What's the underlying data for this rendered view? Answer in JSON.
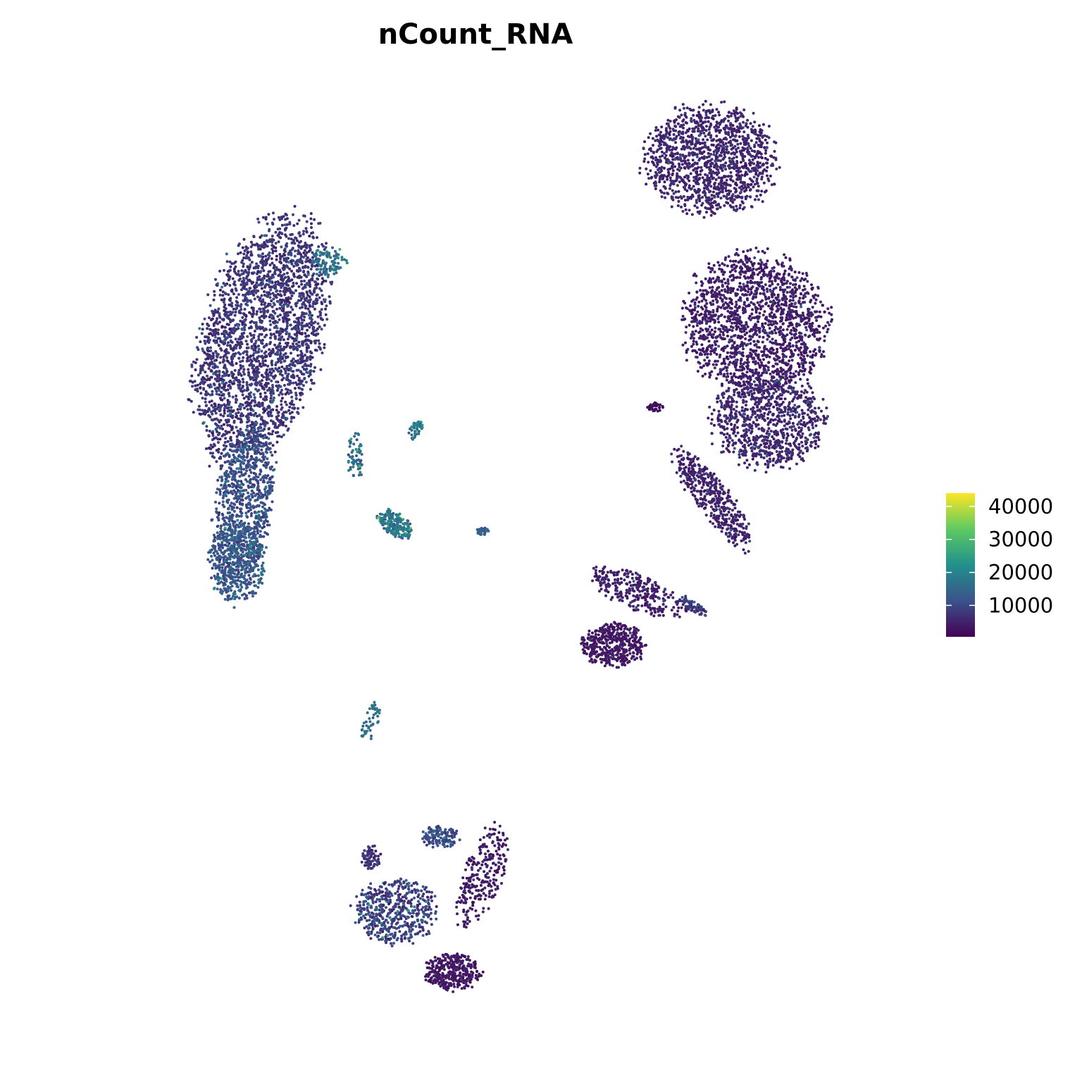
{
  "chart_data": {
    "type": "scatter",
    "title": "nCount_RNA",
    "xlabel": "",
    "ylabel": "",
    "grid": false,
    "axes_visible": false,
    "color_by": "nCount_RNA",
    "colorbar": {
      "palette": "viridis",
      "stops": [
        "#440154",
        "#3b528b",
        "#21918c",
        "#5ec962",
        "#fde725"
      ],
      "range": [
        500,
        44000
      ],
      "ticks": [
        10000,
        20000,
        30000,
        40000
      ],
      "tick_labels": [
        "10000",
        "20000",
        "30000",
        "40000"
      ],
      "position": "right"
    },
    "clusters": [
      {
        "cx": -7.4,
        "cy": 5.3,
        "rx": 1.9,
        "ry": 3.5,
        "tilt": -0.35,
        "n": 2600,
        "level": 7500,
        "spread": 3500
      },
      {
        "cx": -8.0,
        "cy": 0.6,
        "rx": 0.9,
        "ry": 2.3,
        "tilt": -0.18,
        "n": 900,
        "level": 11000,
        "spread": 4500
      },
      {
        "cx": -8.2,
        "cy": -1.0,
        "rx": 0.9,
        "ry": 1.1,
        "tilt": 0.0,
        "n": 400,
        "level": 13000,
        "spread": 4500
      },
      {
        "cx": -5.2,
        "cy": 7.5,
        "rx": 0.6,
        "ry": 0.4,
        "tilt": 0.0,
        "n": 90,
        "level": 17000,
        "spread": 5000
      },
      {
        "cx": 7.4,
        "cy": 10.4,
        "rx": 2.1,
        "ry": 1.5,
        "tilt": 0.0,
        "n": 1300,
        "level": 5500,
        "spread": 2200
      },
      {
        "cx": 8.9,
        "cy": 5.8,
        "rx": 2.3,
        "ry": 1.9,
        "tilt": 0.0,
        "n": 1700,
        "level": 4500,
        "spread": 2200
      },
      {
        "cx": 9.3,
        "cy": 3.0,
        "rx": 1.8,
        "ry": 1.3,
        "tilt": 0.0,
        "n": 900,
        "level": 5500,
        "spread": 2500
      },
      {
        "cx": 7.5,
        "cy": 0.8,
        "rx": 0.5,
        "ry": 1.8,
        "tilt": 0.75,
        "n": 450,
        "level": 5000,
        "spread": 2200
      },
      {
        "cx": 5.0,
        "cy": -1.8,
        "rx": 0.5,
        "ry": 1.6,
        "tilt": 1.25,
        "n": 300,
        "level": 4500,
        "spread": 2000
      },
      {
        "cx": 4.2,
        "cy": -3.3,
        "rx": 1.0,
        "ry": 0.6,
        "tilt": 0.0,
        "n": 420,
        "level": 3500,
        "spread": 1500
      },
      {
        "cx": 6.8,
        "cy": -2.2,
        "rx": 0.5,
        "ry": 0.15,
        "tilt": -0.5,
        "n": 70,
        "level": 8000,
        "spread": 3000
      },
      {
        "cx": 5.6,
        "cy": 3.4,
        "rx": 0.25,
        "ry": 0.12,
        "tilt": 0.0,
        "n": 40,
        "level": 2500,
        "spread": 800
      },
      {
        "cx": -3.0,
        "cy": 0.1,
        "rx": 0.6,
        "ry": 0.3,
        "tilt": -0.5,
        "n": 200,
        "level": 18000,
        "spread": 5500
      },
      {
        "cx": -0.1,
        "cy": -0.1,
        "rx": 0.2,
        "ry": 0.1,
        "tilt": 0.0,
        "n": 40,
        "level": 14000,
        "spread": 3500
      },
      {
        "cx": -2.3,
        "cy": 2.8,
        "rx": 0.2,
        "ry": 0.3,
        "tilt": -0.5,
        "n": 40,
        "level": 17000,
        "spread": 5000
      },
      {
        "cx": -4.3,
        "cy": 2.0,
        "rx": 0.25,
        "ry": 0.7,
        "tilt": 0.0,
        "n": 60,
        "level": 16000,
        "spread": 5000
      },
      {
        "cx": -3.8,
        "cy": -5.5,
        "rx": 0.25,
        "ry": 0.6,
        "tilt": -0.4,
        "n": 45,
        "level": 16000,
        "spread": 4000
      },
      {
        "cx": -3.0,
        "cy": -10.8,
        "rx": 1.3,
        "ry": 0.9,
        "tilt": 0.0,
        "n": 500,
        "level": 9000,
        "spread": 5000
      },
      {
        "cx": -0.1,
        "cy": -9.8,
        "rx": 0.6,
        "ry": 1.5,
        "tilt": -0.4,
        "n": 260,
        "level": 4000,
        "spread": 2000
      },
      {
        "cx": -1.1,
        "cy": -12.5,
        "rx": 0.9,
        "ry": 0.5,
        "tilt": 0.0,
        "n": 320,
        "level": 3500,
        "spread": 1800
      },
      {
        "cx": -1.5,
        "cy": -8.7,
        "rx": 0.6,
        "ry": 0.3,
        "tilt": 0.0,
        "n": 130,
        "level": 11000,
        "spread": 5000
      },
      {
        "cx": -3.8,
        "cy": -9.3,
        "rx": 0.3,
        "ry": 0.4,
        "tilt": 0.0,
        "n": 70,
        "level": 7000,
        "spread": 3000
      }
    ]
  },
  "colors": {
    "background": "#ffffff",
    "text": "#000000"
  }
}
